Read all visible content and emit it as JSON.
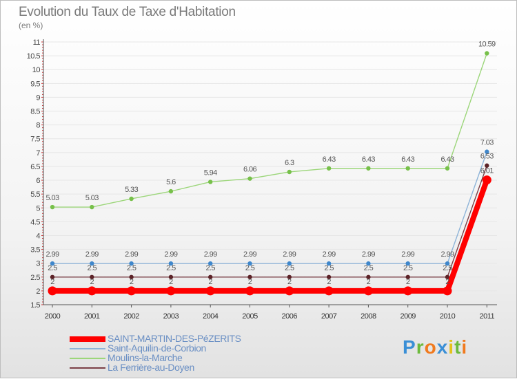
{
  "title": "Evolution du Taux de Taxe d'Habitation",
  "subtitle": "(en %)",
  "logo": {
    "letters": [
      "P",
      "r",
      "o",
      "x",
      "i",
      "t",
      "i"
    ],
    "colors": [
      "#3a8fd6",
      "#6cba3c",
      "#f07a1e",
      "#3a8fd6",
      "#e4c21a",
      "#6cba3c",
      "#f07a1e"
    ]
  },
  "chart_data": {
    "type": "line",
    "title": "Evolution du Taux de Taxe d'Habitation",
    "ylabel": "(en %)",
    "xlabel": "",
    "ylim": [
      1.5,
      11
    ],
    "yticks": [
      "1.5",
      "2",
      "2.5",
      "3",
      "3.5",
      "4",
      "4.5",
      "5",
      "5.5",
      "6",
      "6.5",
      "7",
      "7.5",
      "8",
      "8.5",
      "9",
      "9.5",
      "10",
      "10.5",
      "11"
    ],
    "x": [
      "2000",
      "2001",
      "2002",
      "2003",
      "2004",
      "2005",
      "2006",
      "2007",
      "2008",
      "2009",
      "2010",
      "2011"
    ],
    "series": [
      {
        "name": "Moulins-la-Marche",
        "color": "#9cd67a",
        "marker": "#77c04a",
        "width": 1.4,
        "radius": 3.2,
        "values": [
          5.03,
          5.03,
          5.33,
          5.6,
          5.94,
          6.06,
          6.3,
          6.43,
          6.43,
          6.43,
          6.43,
          10.59
        ],
        "labels": [
          "5.03",
          "5.03",
          "5.33",
          "5.6",
          "5.94",
          "6.06",
          "6.3",
          "6.43",
          "6.43",
          "6.43",
          "6.43",
          "10.59"
        ]
      },
      {
        "name": "Saint-Aquilin-de-Corbion",
        "color": "#8db3d8",
        "marker": "#3f87cb",
        "width": 1.4,
        "radius": 3.2,
        "values": [
          2.99,
          2.99,
          2.99,
          2.99,
          2.99,
          2.99,
          2.99,
          2.99,
          2.99,
          2.99,
          2.99,
          7.03
        ],
        "labels": [
          "2.99",
          "2.99",
          "2.99",
          "2.99",
          "2.99",
          "2.99",
          "2.99",
          "2.99",
          "2.99",
          "2.99",
          "2.99",
          "7.03"
        ]
      },
      {
        "name": "La Ferrière-au-Doyen",
        "color": "#7a3f46",
        "marker": "#5c2328",
        "width": 1.4,
        "radius": 3.2,
        "values": [
          2.5,
          2.5,
          2.5,
          2.5,
          2.5,
          2.5,
          2.5,
          2.5,
          2.5,
          2.5,
          2.5,
          6.53
        ],
        "labels": [
          "2.5",
          "2.5",
          "2.5",
          "2.5",
          "2.5",
          "2.5",
          "2.5",
          "2.5",
          "2.5",
          "2.5",
          "2.5",
          "6.53"
        ]
      },
      {
        "name": "SAINT-MARTIN-DES-PéZERITS",
        "color": "#ff0000",
        "marker": "#ff0000",
        "width": 8,
        "radius": 6.5,
        "values": [
          2,
          2,
          2,
          2,
          2,
          2,
          2,
          2,
          2,
          2,
          2,
          6.01
        ],
        "labels": [
          "2",
          "2",
          "2",
          "2",
          "2",
          "2",
          "2",
          "2",
          "2",
          "2",
          "2",
          "6.01"
        ]
      }
    ],
    "legend": [
      {
        "name": "SAINT-MARTIN-DES-PéZERITS",
        "color": "#ff0000",
        "thickness": "thick"
      },
      {
        "name": "Saint-Aquilin-de-Corbion",
        "color": "#8db3d8",
        "thickness": "thin"
      },
      {
        "name": "Moulins-la-Marche",
        "color": "#9cd67a",
        "thickness": "thin"
      },
      {
        "name": "La Ferrière-au-Doyen",
        "color": "#7a3f46",
        "thickness": "thin"
      }
    ],
    "legend_position": "bottom-left",
    "grid": true
  }
}
